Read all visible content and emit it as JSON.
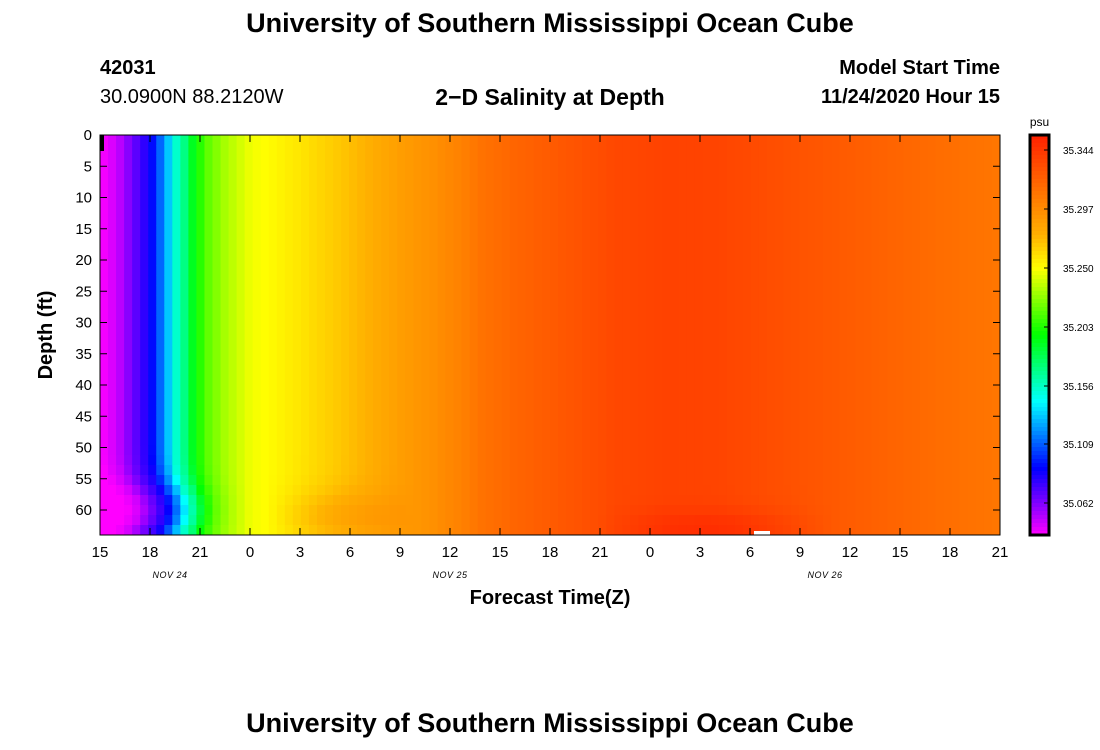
{
  "header": {
    "title": "University of Southern Mississippi Ocean Cube",
    "station_id": "42031",
    "coordinates": "30.0900N 88.2120W",
    "plot_title": "2−D Salinity at Depth",
    "model_start_label": "Model Start Time",
    "model_start_value": "11/24/2020 Hour 15"
  },
  "footer": {
    "title": "University of Southern Mississippi Ocean Cube"
  },
  "chart_data": {
    "type": "heatmap",
    "title": "2−D Salinity at Depth",
    "xlabel": "Forecast Time(Z)",
    "ylabel": "Depth (ft)",
    "x_ticks": [
      "15",
      "18",
      "21",
      "0",
      "3",
      "6",
      "9",
      "12",
      "15",
      "18",
      "21",
      "0",
      "3",
      "6",
      "9",
      "12",
      "15",
      "18",
      "21"
    ],
    "x_range_hours": [
      0,
      54
    ],
    "date_labels": [
      {
        "label": "NOV 24",
        "at_hour": 4.2
      },
      {
        "label": "NOV 25",
        "at_hour": 21
      },
      {
        "label": "NOV 26",
        "at_hour": 43.5
      }
    ],
    "y_ticks": [
      0,
      5,
      10,
      15,
      20,
      25,
      30,
      35,
      40,
      45,
      50,
      55,
      60
    ],
    "ylim": [
      0,
      64
    ],
    "y_inverted": true,
    "colorbar": {
      "unit": "psu",
      "labels": [
        "35.344",
        "35.297",
        "35.250",
        "35.203",
        "35.156",
        "35.109",
        "35.062"
      ],
      "range": [
        35.04,
        35.36
      ],
      "colors": [
        "#ff00ff",
        "#7a00ff",
        "#0000ff",
        "#0080ff",
        "#00ffff",
        "#00ff80",
        "#00ff00",
        "#80ff00",
        "#ffff00",
        "#ffb000",
        "#ff8000",
        "#ff5000",
        "#ff2000"
      ]
    },
    "salinity_profile_by_hour": {
      "hours": [
        0,
        1,
        2,
        3,
        3.5,
        4,
        4.5,
        5,
        5.7,
        6.5,
        7.5,
        9,
        12,
        15,
        18,
        20,
        21.5,
        23,
        25,
        28,
        31,
        34,
        37,
        40,
        43,
        46,
        50,
        54
      ],
      "surface": [
        35.04,
        35.05,
        35.07,
        35.09,
        35.11,
        35.13,
        35.155,
        35.17,
        35.2,
        35.22,
        35.235,
        35.25,
        35.262,
        35.275,
        35.29,
        35.298,
        35.305,
        35.315,
        35.322,
        35.33,
        35.338,
        35.341,
        35.34,
        35.335,
        35.33,
        35.325,
        35.318,
        35.312
      ]
    }
  }
}
